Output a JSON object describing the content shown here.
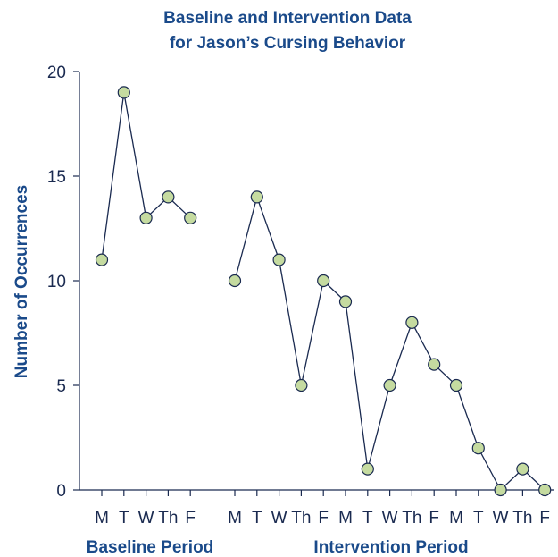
{
  "chart_data": {
    "type": "line",
    "title": [
      "Baseline and Intervention Data",
      "for Jason’s Cursing Behavior"
    ],
    "ylabel": "Number of Occurrences",
    "xlabel": "",
    "ylim": [
      0,
      20
    ],
    "yticks": [
      0,
      5,
      10,
      15,
      20
    ],
    "grid": false,
    "series": [
      {
        "period": "Baseline Period",
        "categories": [
          "M",
          "T",
          "W",
          "Th",
          "F"
        ],
        "values": [
          11,
          19,
          13,
          14,
          13
        ]
      },
      {
        "period": "Intervention Period",
        "categories": [
          "M",
          "T",
          "W",
          "Th",
          "F",
          "M",
          "T",
          "W",
          "Th",
          "F",
          "M",
          "T",
          "W",
          "Th",
          "F"
        ],
        "values": [
          10,
          14,
          11,
          5,
          10,
          9,
          1,
          5,
          8,
          6,
          5,
          2,
          0,
          1,
          0
        ]
      }
    ],
    "colors": {
      "line": "#1a2a50",
      "marker_fill": "#c5dba0",
      "marker_stroke": "#1a2a50",
      "text": "#1a4a8a"
    }
  }
}
